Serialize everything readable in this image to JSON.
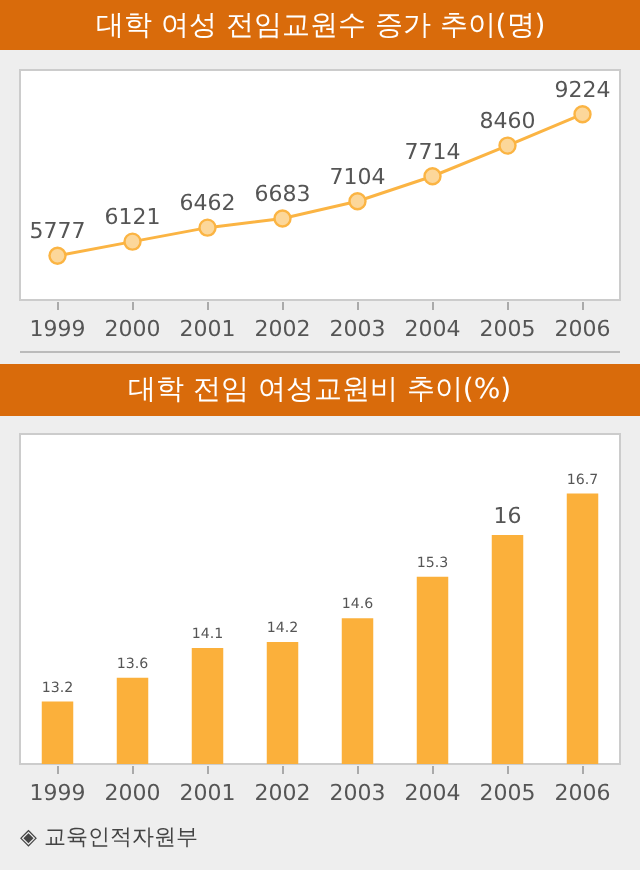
{
  "chart_data": [
    {
      "type": "line",
      "title": "대학 여성 전임교원수 증가 추이(명)",
      "categories": [
        "1999",
        "2000",
        "2001",
        "2002",
        "2003",
        "2004",
        "2005",
        "2006"
      ],
      "series": [
        {
          "color": "#fbb443",
          "values": [
            5777,
            6121,
            6462,
            6683,
            7104,
            7714,
            8460,
            9224
          ]
        }
      ],
      "ylim": [
        4700,
        10300
      ],
      "data_labels": true,
      "marker": "circle",
      "line_style": "solid",
      "grid": false,
      "legend": false,
      "tick_labels": "x"
    },
    {
      "type": "bar",
      "title": "대학 전임 여성교원비 추이(%)",
      "categories": [
        "1999",
        "2000",
        "2001",
        "2002",
        "2003",
        "2004",
        "2005",
        "2006"
      ],
      "series": [
        {
          "color": "#fbb03b",
          "values": [
            13.2,
            13.6,
            14.1,
            14.2,
            14.6,
            15.3,
            16,
            16.7
          ]
        }
      ],
      "ylim": [
        12.15,
        17.7
      ],
      "data_labels": true,
      "grid": false,
      "legend": false,
      "tick_labels": "x",
      "annotations": [
        "◈ 교육인적자원부"
      ]
    }
  ]
}
